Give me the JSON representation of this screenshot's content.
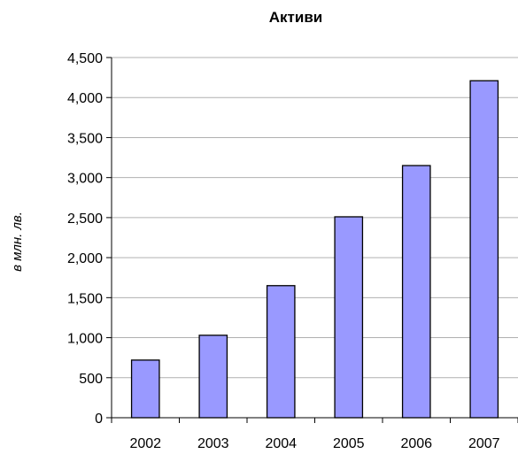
{
  "chart_data": {
    "type": "bar",
    "title": "Активи",
    "xlabel": "",
    "ylabel": "в млн. лв.",
    "categories": [
      "2002",
      "2003",
      "2004",
      "2005",
      "2006",
      "2007"
    ],
    "values": [
      720,
      1030,
      1650,
      2510,
      3150,
      4210
    ],
    "ylim": [
      0,
      4500
    ],
    "yticks": [
      0,
      500,
      1000,
      1500,
      2000,
      2500,
      3000,
      3500,
      4000,
      4500
    ],
    "ytick_labels": [
      "0",
      "500",
      "1,000",
      "1,500",
      "2,000",
      "2,500",
      "3,000",
      "3,500",
      "4,000",
      "4,500"
    ],
    "grid": true,
    "legend": "none",
    "colors": {
      "bar_fill": "#9999ff",
      "bar_stroke": "#000000",
      "grid": "#b0b0b0",
      "axis": "#000000"
    }
  }
}
